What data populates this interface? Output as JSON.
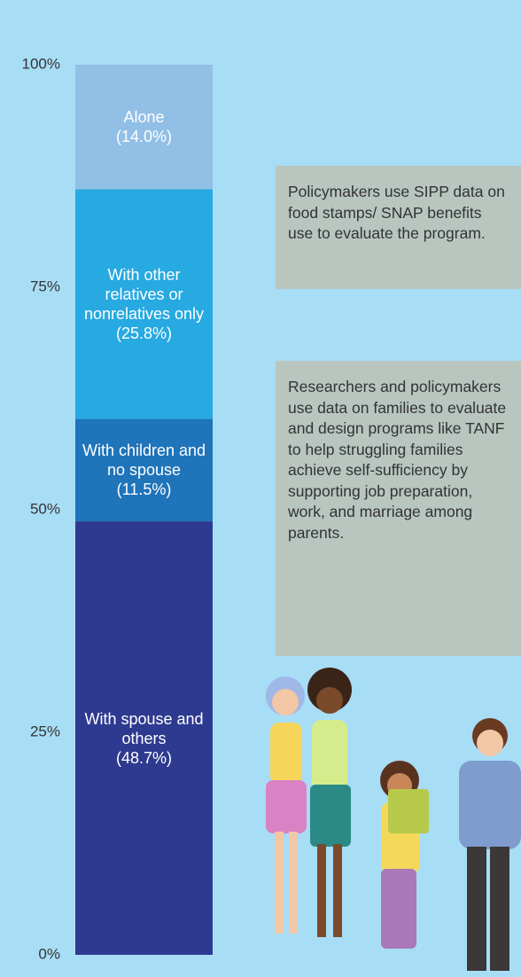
{
  "chart_data": {
    "type": "stacked_bar",
    "categories": [
      null
    ],
    "series": [
      {
        "name": "With spouse and others",
        "color": "#2e3a8f",
        "values": [
          48.7
        ],
        "value_labels": [
          "(48.7%)"
        ]
      },
      {
        "name": "With children and no spouse",
        "color": "#1f74ba",
        "values": [
          11.5
        ],
        "value_labels": [
          "(11.5%)"
        ]
      },
      {
        "name": "With other relatives or nonrelatives only",
        "color": "#27a9e1",
        "values": [
          25.8
        ],
        "value_labels": [
          "(25.8%)"
        ]
      },
      {
        "name": "Alone",
        "color": "#91bfe6",
        "values": [
          14.0
        ],
        "value_labels": [
          "(14.0%)"
        ]
      }
    ],
    "ylim": [
      0,
      100
    ],
    "yticks": [
      {
        "value": 0,
        "label": "0%"
      },
      {
        "value": 25,
        "label": "25%"
      },
      {
        "value": 50,
        "label": "50%"
      },
      {
        "value": 75,
        "label": "75%"
      },
      {
        "value": 100,
        "label": "100%"
      }
    ]
  },
  "notes": [
    "Policymakers use SIPP data on food stamps/ SNAP benefits use to evaluate the program.",
    "Researchers and policymakers use data on families to evaluate and design programs like TANF to help struggling families achieve self-sufficiency by supporting job preparation, work, and marriage among parents."
  ]
}
